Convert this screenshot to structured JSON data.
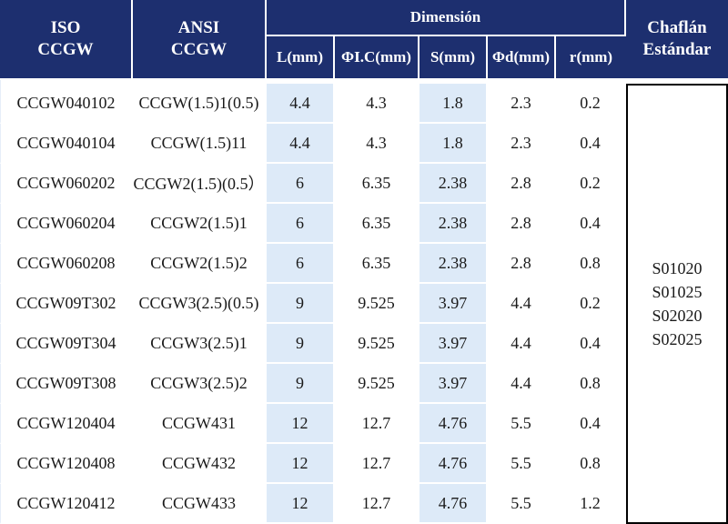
{
  "header": {
    "iso": [
      "ISO",
      "CCGW"
    ],
    "ansi": [
      "ANSI",
      "CCGW"
    ],
    "dimension_group": "Dimensión",
    "sub": [
      "L(mm)",
      "ΦI.C(mm)",
      "S(mm)",
      "Φd(mm)",
      "r(mm)"
    ],
    "chaflan": [
      "Chaflán",
      "Estándar"
    ]
  },
  "rows": [
    {
      "iso": "CCGW040102",
      "ansi": "CCGW(1.5)1(0.5)",
      "l": "4.4",
      "ic": "4.3",
      "s": "1.8",
      "d": "2.3",
      "r": "0.2"
    },
    {
      "iso": "CCGW040104",
      "ansi": "CCGW(1.5)11",
      "l": "4.4",
      "ic": "4.3",
      "s": "1.8",
      "d": "2.3",
      "r": "0.4"
    },
    {
      "iso": "CCGW060202",
      "ansi": "CCGW2(1.5)(0.5）",
      "l": "6",
      "ic": "6.35",
      "s": "2.38",
      "d": "2.8",
      "r": "0.2"
    },
    {
      "iso": "CCGW060204",
      "ansi": "CCGW2(1.5)1",
      "l": "6",
      "ic": "6.35",
      "s": "2.38",
      "d": "2.8",
      "r": "0.4"
    },
    {
      "iso": "CCGW060208",
      "ansi": "CCGW2(1.5)2",
      "l": "6",
      "ic": "6.35",
      "s": "2.38",
      "d": "2.8",
      "r": "0.8"
    },
    {
      "iso": "CCGW09T302",
      "ansi": "CCGW3(2.5)(0.5)",
      "l": "9",
      "ic": "9.525",
      "s": "3.97",
      "d": "4.4",
      "r": "0.2"
    },
    {
      "iso": "CCGW09T304",
      "ansi": "CCGW3(2.5)1",
      "l": "9",
      "ic": "9.525",
      "s": "3.97",
      "d": "4.4",
      "r": "0.4"
    },
    {
      "iso": "CCGW09T308",
      "ansi": "CCGW3(2.5)2",
      "l": "9",
      "ic": "9.525",
      "s": "3.97",
      "d": "4.4",
      "r": "0.8"
    },
    {
      "iso": "CCGW120404",
      "ansi": "CCGW431",
      "l": "12",
      "ic": "12.7",
      "s": "4.76",
      "d": "5.5",
      "r": "0.4"
    },
    {
      "iso": "CCGW120408",
      "ansi": "CCGW432",
      "l": "12",
      "ic": "12.7",
      "s": "4.76",
      "d": "5.5",
      "r": "0.8"
    },
    {
      "iso": "CCGW120412",
      "ansi": "CCGW433",
      "l": "12",
      "ic": "12.7",
      "s": "4.76",
      "d": "5.5",
      "r": "1.2"
    }
  ],
  "chaflan_values": [
    "S01020",
    "S01025",
    "S02020",
    "S02025"
  ],
  "colors": {
    "header_bg": "#1d2f6f",
    "header_text": "#ffffff",
    "row_shade": "#ddeaf8"
  }
}
